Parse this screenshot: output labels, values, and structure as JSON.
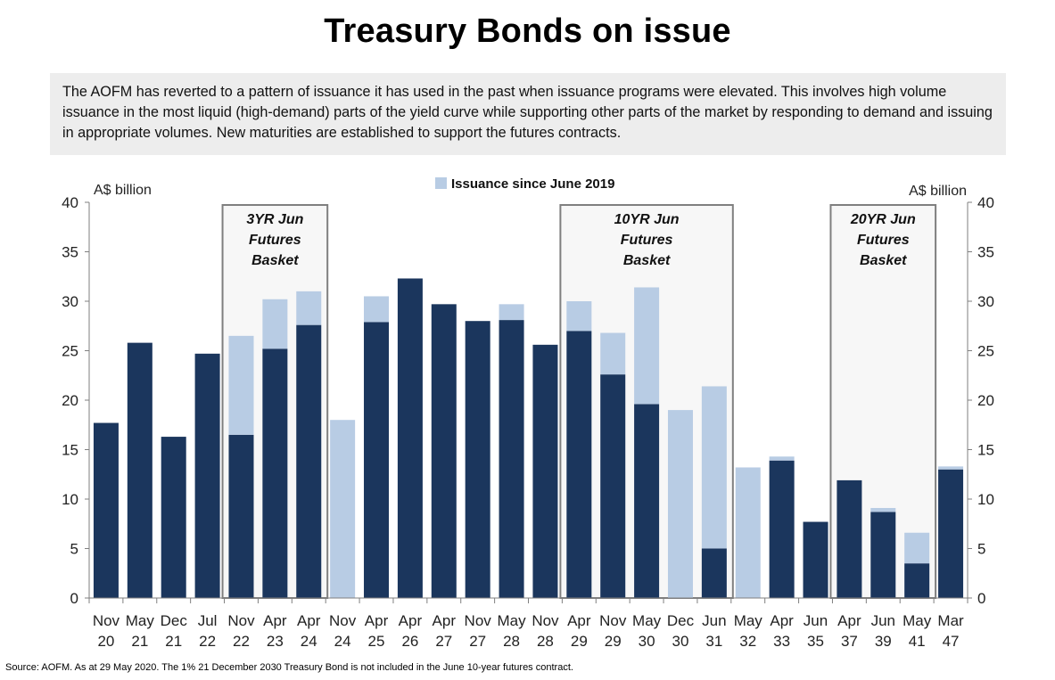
{
  "title": "Treasury Bonds on issue",
  "intro": "The AOFM has reverted to a pattern of issuance it has used in the past when issuance programs were elevated. This involves high volume issuance in the most liquid (high-demand) parts of the yield curve while supporting other parts of the market by responding to demand and issuing in appropriate volumes. New maturities are established to support the futures contracts.",
  "source": "Source: AOFM. As at 29 May 2020. The 1% 21 December 2030 Treasury Bond is not included in the June 10-year futures contract.",
  "colors": {
    "base": "#1b365d",
    "new_issuance": "#b8cce4",
    "box_fill": "#f7f7f7",
    "box_border": "#7f7f7f"
  },
  "chart_data": {
    "type": "bar",
    "stacked": true,
    "ylabel_left": "A$ billion",
    "ylabel_right": "A$ billion",
    "ylim": [
      0,
      40
    ],
    "yticks": [
      0,
      5,
      10,
      15,
      20,
      25,
      30,
      35,
      40
    ],
    "legend": {
      "label": "Issuance since June 2019",
      "position": "top-center"
    },
    "categories": [
      [
        "Nov",
        "20"
      ],
      [
        "May",
        "21"
      ],
      [
        "Dec",
        "21"
      ],
      [
        "Jul",
        "22"
      ],
      [
        "Nov",
        "22"
      ],
      [
        "Apr",
        "23"
      ],
      [
        "Apr",
        "24"
      ],
      [
        "Nov",
        "24"
      ],
      [
        "Apr",
        "25"
      ],
      [
        "Apr",
        "26"
      ],
      [
        "Apr",
        "27"
      ],
      [
        "Nov",
        "27"
      ],
      [
        "May",
        "28"
      ],
      [
        "Nov",
        "28"
      ],
      [
        "Apr",
        "29"
      ],
      [
        "Nov",
        "29"
      ],
      [
        "May",
        "30"
      ],
      [
        "Dec",
        "30"
      ],
      [
        "Jun",
        "31"
      ],
      [
        "May",
        "32"
      ],
      [
        "Apr",
        "33"
      ],
      [
        "Jun",
        "35"
      ],
      [
        "Apr",
        "37"
      ],
      [
        "Jun",
        "39"
      ],
      [
        "May",
        "41"
      ],
      [
        "Mar",
        "47"
      ]
    ],
    "series": [
      {
        "values": [
          17.7,
          25.8,
          16.3,
          24.7,
          16.5,
          25.2,
          27.6,
          0,
          27.9,
          32.3,
          29.7,
          28.0,
          28.1,
          25.6,
          27.0,
          22.6,
          19.6,
          0,
          5.0,
          0,
          13.9,
          7.7,
          11.9,
          8.7,
          3.5,
          13.0
        ]
      },
      {
        "name": "Issuance since June 2019",
        "values": [
          0,
          0,
          0,
          0,
          10.0,
          5.0,
          3.4,
          18.0,
          2.6,
          0,
          0,
          0,
          1.6,
          0,
          3.0,
          4.2,
          11.8,
          19.0,
          16.4,
          13.2,
          0.4,
          0,
          0,
          0.4,
          3.1,
          0.3
        ]
      }
    ],
    "annotations": [
      {
        "text": [
          "3YR Jun",
          "Futures",
          "Basket"
        ],
        "from": 4,
        "to": 6
      },
      {
        "text": [
          "10YR Jun",
          "Futures",
          "Basket"
        ],
        "from": 14,
        "to": 18
      },
      {
        "text": [
          "20YR Jun",
          "Futures",
          "Basket"
        ],
        "from": 22,
        "to": 24
      }
    ]
  }
}
